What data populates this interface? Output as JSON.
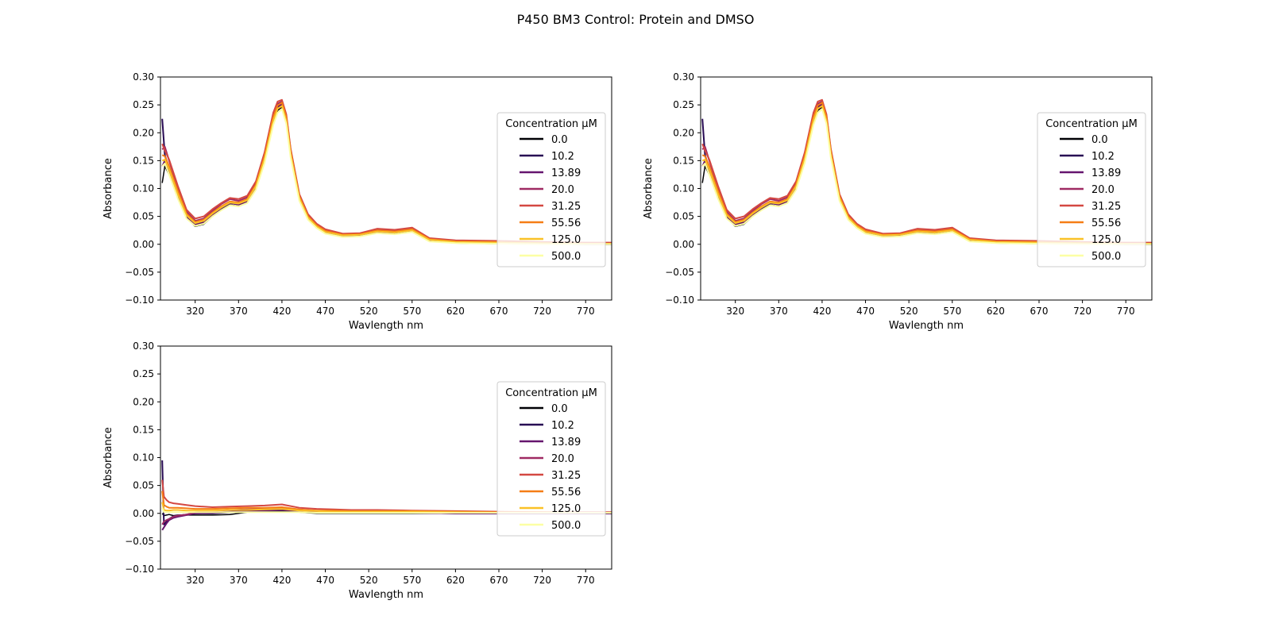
{
  "figure": {
    "title": "P450 BM3 Control: Protein and DMSO"
  },
  "colors": {
    "background": "#ffffff",
    "axis": "#000000",
    "legend_border": "#cccccc"
  },
  "chart_data": [
    {
      "type": "line",
      "xlabel": "Wavlength nm",
      "ylabel": "Absorbance",
      "xlim": [
        280,
        800
      ],
      "ylim": [
        -0.1,
        0.3
      ],
      "xticks": [
        "320",
        "370",
        "420",
        "470",
        "520",
        "570",
        "620",
        "670",
        "720",
        "770"
      ],
      "yticks": [
        "−0.10",
        "−0.05",
        "0.00",
        "0.05",
        "0.10",
        "0.15",
        "0.20",
        "0.25",
        "0.30"
      ],
      "grid": false,
      "legend": {
        "title": "Concentration µM",
        "placement": "right"
      },
      "x": [
        282,
        285,
        290,
        300,
        310,
        320,
        330,
        340,
        350,
        360,
        370,
        380,
        390,
        400,
        410,
        415,
        420,
        425,
        430,
        440,
        450,
        460,
        470,
        490,
        510,
        530,
        550,
        570,
        590,
        620,
        670,
        720,
        770,
        800
      ],
      "series": [
        {
          "name": "0.0",
          "color": "#000004",
          "values": [
            0.11,
            0.14,
            0.125,
            0.085,
            0.048,
            0.032,
            0.036,
            0.05,
            0.062,
            0.071,
            0.068,
            0.074,
            0.1,
            0.15,
            0.22,
            0.24,
            0.246,
            0.22,
            0.16,
            0.08,
            0.045,
            0.03,
            0.02,
            0.014,
            0.015,
            0.021,
            0.02,
            0.024,
            0.006,
            0.002,
            0.001,
            0.0,
            0.0,
            0.0
          ]
        },
        {
          "name": "10.2",
          "color": "#280b54",
          "values": [
            0.225,
            0.16,
            0.135,
            0.09,
            0.052,
            0.036,
            0.04,
            0.054,
            0.066,
            0.075,
            0.072,
            0.078,
            0.104,
            0.155,
            0.225,
            0.246,
            0.252,
            0.226,
            0.165,
            0.084,
            0.048,
            0.032,
            0.022,
            0.016,
            0.017,
            0.023,
            0.022,
            0.026,
            0.008,
            0.004,
            0.003,
            0.001,
            0.0,
            0.0
          ]
        },
        {
          "name": "13.89",
          "color": "#65156e",
          "values": [
            0.14,
            0.15,
            0.13,
            0.088,
            0.05,
            0.035,
            0.039,
            0.053,
            0.065,
            0.074,
            0.071,
            0.077,
            0.103,
            0.154,
            0.224,
            0.245,
            0.251,
            0.225,
            0.164,
            0.083,
            0.047,
            0.031,
            0.021,
            0.015,
            0.016,
            0.022,
            0.021,
            0.025,
            0.007,
            0.003,
            0.002,
            0.001,
            0.0,
            0.0
          ]
        },
        {
          "name": "20.0",
          "color": "#9f2a63",
          "values": [
            0.17,
            0.175,
            0.15,
            0.1,
            0.058,
            0.042,
            0.046,
            0.06,
            0.072,
            0.081,
            0.078,
            0.084,
            0.11,
            0.162,
            0.232,
            0.252,
            0.256,
            0.23,
            0.17,
            0.088,
            0.052,
            0.035,
            0.025,
            0.018,
            0.019,
            0.026,
            0.024,
            0.028,
            0.01,
            0.006,
            0.005,
            0.003,
            0.002,
            0.002
          ]
        },
        {
          "name": "31.25",
          "color": "#d44842",
          "values": [
            0.18,
            0.168,
            0.152,
            0.105,
            0.062,
            0.046,
            0.05,
            0.063,
            0.074,
            0.083,
            0.081,
            0.087,
            0.113,
            0.165,
            0.236,
            0.256,
            0.259,
            0.233,
            0.172,
            0.09,
            0.054,
            0.037,
            0.027,
            0.019,
            0.02,
            0.028,
            0.026,
            0.03,
            0.011,
            0.007,
            0.006,
            0.004,
            0.003,
            0.003
          ]
        },
        {
          "name": "55.56",
          "color": "#f57d15",
          "values": [
            0.16,
            0.158,
            0.14,
            0.096,
            0.055,
            0.04,
            0.044,
            0.057,
            0.068,
            0.077,
            0.075,
            0.081,
            0.107,
            0.158,
            0.228,
            0.249,
            0.254,
            0.228,
            0.167,
            0.086,
            0.05,
            0.034,
            0.024,
            0.017,
            0.018,
            0.025,
            0.023,
            0.027,
            0.009,
            0.005,
            0.004,
            0.002,
            0.001,
            0.001
          ]
        },
        {
          "name": "125.0",
          "color": "#fac127",
          "values": [
            0.15,
            0.152,
            0.134,
            0.09,
            0.052,
            0.038,
            0.042,
            0.055,
            0.066,
            0.075,
            0.073,
            0.079,
            0.104,
            0.154,
            0.222,
            0.243,
            0.248,
            0.222,
            0.162,
            0.083,
            0.048,
            0.032,
            0.022,
            0.016,
            0.017,
            0.023,
            0.021,
            0.025,
            0.008,
            0.004,
            0.003,
            0.002,
            0.001,
            0.001
          ]
        },
        {
          "name": "500.0",
          "color": "#fcffa4",
          "values": [
            0.14,
            0.145,
            0.125,
            0.082,
            0.046,
            0.033,
            0.037,
            0.05,
            0.061,
            0.07,
            0.068,
            0.074,
            0.098,
            0.146,
            0.214,
            0.236,
            0.242,
            0.216,
            0.156,
            0.078,
            0.044,
            0.029,
            0.019,
            0.013,
            0.014,
            0.02,
            0.018,
            0.022,
            0.005,
            0.002,
            0.001,
            0.0,
            0.0,
            0.0
          ]
        }
      ]
    },
    {
      "type": "line",
      "xlabel": "Wavlength nm",
      "ylabel": "Absorbance",
      "xlim": [
        280,
        800
      ],
      "ylim": [
        -0.1,
        0.3
      ],
      "xticks": [
        "320",
        "370",
        "420",
        "470",
        "520",
        "570",
        "620",
        "670",
        "720",
        "770"
      ],
      "yticks": [
        "−0.10",
        "−0.05",
        "0.00",
        "0.05",
        "0.10",
        "0.15",
        "0.20",
        "0.25",
        "0.30"
      ],
      "grid": false,
      "legend": {
        "title": "Concentration µM",
        "placement": "right"
      },
      "x": [
        282,
        285,
        290,
        300,
        310,
        320,
        330,
        340,
        350,
        360,
        370,
        380,
        390,
        400,
        410,
        415,
        420,
        425,
        430,
        440,
        450,
        460,
        470,
        490,
        510,
        530,
        550,
        570,
        590,
        620,
        670,
        720,
        770,
        800
      ],
      "series": [
        {
          "name": "0.0",
          "color": "#000004",
          "values": [
            0.11,
            0.14,
            0.125,
            0.085,
            0.048,
            0.032,
            0.036,
            0.05,
            0.062,
            0.071,
            0.068,
            0.074,
            0.1,
            0.15,
            0.22,
            0.24,
            0.246,
            0.22,
            0.16,
            0.08,
            0.045,
            0.03,
            0.02,
            0.014,
            0.015,
            0.021,
            0.02,
            0.024,
            0.006,
            0.002,
            0.001,
            0.0,
            0.0,
            0.0
          ]
        },
        {
          "name": "10.2",
          "color": "#280b54",
          "values": [
            0.225,
            0.16,
            0.135,
            0.09,
            0.052,
            0.036,
            0.04,
            0.054,
            0.066,
            0.075,
            0.072,
            0.078,
            0.104,
            0.155,
            0.225,
            0.246,
            0.252,
            0.226,
            0.165,
            0.084,
            0.048,
            0.032,
            0.022,
            0.016,
            0.017,
            0.023,
            0.022,
            0.026,
            0.008,
            0.004,
            0.003,
            0.001,
            0.0,
            0.0
          ]
        },
        {
          "name": "13.89",
          "color": "#65156e",
          "values": [
            0.14,
            0.15,
            0.13,
            0.088,
            0.05,
            0.035,
            0.039,
            0.053,
            0.065,
            0.074,
            0.071,
            0.077,
            0.103,
            0.154,
            0.224,
            0.245,
            0.251,
            0.225,
            0.164,
            0.083,
            0.047,
            0.031,
            0.021,
            0.015,
            0.016,
            0.022,
            0.021,
            0.025,
            0.007,
            0.003,
            0.002,
            0.001,
            0.0,
            0.0
          ]
        },
        {
          "name": "20.0",
          "color": "#9f2a63",
          "values": [
            0.17,
            0.175,
            0.15,
            0.1,
            0.058,
            0.042,
            0.046,
            0.06,
            0.072,
            0.081,
            0.078,
            0.084,
            0.11,
            0.162,
            0.232,
            0.252,
            0.256,
            0.23,
            0.17,
            0.088,
            0.052,
            0.035,
            0.025,
            0.018,
            0.019,
            0.026,
            0.024,
            0.028,
            0.01,
            0.006,
            0.005,
            0.003,
            0.002,
            0.002
          ]
        },
        {
          "name": "31.25",
          "color": "#d44842",
          "values": [
            0.18,
            0.168,
            0.152,
            0.105,
            0.062,
            0.046,
            0.05,
            0.063,
            0.074,
            0.083,
            0.081,
            0.087,
            0.113,
            0.165,
            0.236,
            0.256,
            0.259,
            0.233,
            0.172,
            0.09,
            0.054,
            0.037,
            0.027,
            0.019,
            0.02,
            0.028,
            0.026,
            0.03,
            0.011,
            0.007,
            0.006,
            0.004,
            0.003,
            0.003
          ]
        },
        {
          "name": "55.56",
          "color": "#f57d15",
          "values": [
            0.16,
            0.158,
            0.14,
            0.096,
            0.055,
            0.04,
            0.044,
            0.057,
            0.068,
            0.077,
            0.075,
            0.081,
            0.107,
            0.158,
            0.228,
            0.249,
            0.254,
            0.228,
            0.167,
            0.086,
            0.05,
            0.034,
            0.024,
            0.017,
            0.018,
            0.025,
            0.023,
            0.027,
            0.009,
            0.005,
            0.004,
            0.002,
            0.001,
            0.001
          ]
        },
        {
          "name": "125.0",
          "color": "#fac127",
          "values": [
            0.15,
            0.152,
            0.134,
            0.09,
            0.052,
            0.038,
            0.042,
            0.055,
            0.066,
            0.075,
            0.073,
            0.079,
            0.104,
            0.154,
            0.222,
            0.243,
            0.248,
            0.222,
            0.162,
            0.083,
            0.048,
            0.032,
            0.022,
            0.016,
            0.017,
            0.023,
            0.021,
            0.025,
            0.008,
            0.004,
            0.003,
            0.002,
            0.001,
            0.001
          ]
        },
        {
          "name": "500.0",
          "color": "#fcffa4",
          "values": [
            0.14,
            0.145,
            0.125,
            0.082,
            0.046,
            0.033,
            0.037,
            0.05,
            0.061,
            0.07,
            0.068,
            0.074,
            0.098,
            0.146,
            0.214,
            0.236,
            0.242,
            0.216,
            0.156,
            0.078,
            0.044,
            0.029,
            0.019,
            0.013,
            0.014,
            0.02,
            0.018,
            0.022,
            0.005,
            0.002,
            0.001,
            0.0,
            0.0,
            0.0
          ]
        }
      ]
    },
    {
      "type": "line",
      "xlabel": "Wavlength nm",
      "ylabel": "Absorbance",
      "xlim": [
        280,
        800
      ],
      "ylim": [
        -0.1,
        0.3
      ],
      "xticks": [
        "320",
        "370",
        "420",
        "470",
        "520",
        "570",
        "620",
        "670",
        "720",
        "770"
      ],
      "yticks": [
        "−0.10",
        "−0.05",
        "0.00",
        "0.05",
        "0.10",
        "0.15",
        "0.20",
        "0.25",
        "0.30"
      ],
      "grid": false,
      "legend": {
        "title": "Concentration µM",
        "placement": "right"
      },
      "x": [
        282,
        284,
        287,
        290,
        295,
        300,
        310,
        320,
        340,
        360,
        380,
        400,
        420,
        440,
        460,
        480,
        500,
        530,
        570,
        620,
        670,
        720,
        770,
        800
      ],
      "series": [
        {
          "name": "0.0",
          "color": "#000004",
          "values": [
            0.0,
            -0.004,
            -0.003,
            -0.002,
            -0.004,
            -0.003,
            -0.003,
            -0.003,
            -0.003,
            -0.002,
            0.002,
            0.003,
            0.004,
            0.002,
            0.0,
            0.0,
            0.0,
            0.0,
            0.0,
            0.0,
            0.0,
            0.0,
            0.0,
            0.0
          ]
        },
        {
          "name": "10.2",
          "color": "#280b54",
          "values": [
            0.095,
            -0.02,
            -0.015,
            -0.01,
            -0.005,
            -0.004,
            -0.002,
            0.0,
            0.0,
            0.002,
            0.004,
            0.005,
            0.006,
            0.004,
            0.002,
            0.001,
            0.001,
            0.001,
            0.001,
            0.0,
            0.0,
            0.0,
            0.0,
            0.0
          ]
        },
        {
          "name": "13.89",
          "color": "#65156e",
          "values": [
            -0.03,
            -0.025,
            -0.018,
            -0.012,
            -0.008,
            -0.006,
            -0.003,
            0.0,
            0.001,
            0.003,
            0.004,
            0.005,
            0.006,
            0.004,
            0.002,
            0.001,
            0.001,
            0.001,
            0.001,
            0.0,
            0.0,
            0.0,
            0.0,
            0.0
          ]
        },
        {
          "name": "20.0",
          "color": "#9f2a63",
          "values": [
            -0.02,
            -0.015,
            -0.012,
            -0.01,
            -0.006,
            -0.004,
            -0.002,
            0.002,
            0.004,
            0.006,
            0.007,
            0.008,
            0.009,
            0.006,
            0.004,
            0.003,
            0.003,
            0.003,
            0.003,
            0.002,
            0.001,
            0.001,
            0.001,
            0.001
          ]
        },
        {
          "name": "31.25",
          "color": "#d44842",
          "values": [
            0.06,
            0.03,
            0.024,
            0.02,
            0.018,
            0.017,
            0.015,
            0.013,
            0.011,
            0.012,
            0.013,
            0.014,
            0.016,
            0.01,
            0.008,
            0.007,
            0.006,
            0.006,
            0.005,
            0.004,
            0.003,
            0.002,
            0.002,
            0.002
          ]
        },
        {
          "name": "55.56",
          "color": "#f57d15",
          "values": [
            0.04,
            0.015,
            0.012,
            0.01,
            0.01,
            0.01,
            0.009,
            0.008,
            0.008,
            0.009,
            0.01,
            0.01,
            0.011,
            0.007,
            0.005,
            0.005,
            0.004,
            0.004,
            0.004,
            0.003,
            0.002,
            0.002,
            0.001,
            0.001
          ]
        },
        {
          "name": "125.0",
          "color": "#fac127",
          "values": [
            0.02,
            0.006,
            0.005,
            0.005,
            0.006,
            0.006,
            0.005,
            0.005,
            0.005,
            0.006,
            0.006,
            0.007,
            0.008,
            0.005,
            0.004,
            0.003,
            0.003,
            0.003,
            0.003,
            0.002,
            0.001,
            0.001,
            0.001,
            0.001
          ]
        },
        {
          "name": "500.0",
          "color": "#fcffa4",
          "values": [
            0.01,
            0.002,
            0.002,
            0.002,
            0.002,
            0.002,
            0.002,
            0.002,
            0.002,
            0.002,
            0.002,
            0.002,
            0.002,
            0.002,
            0.001,
            0.001,
            0.001,
            0.001,
            0.001,
            0.001,
            0.001,
            0.001,
            0.001,
            0.001
          ]
        }
      ]
    }
  ]
}
